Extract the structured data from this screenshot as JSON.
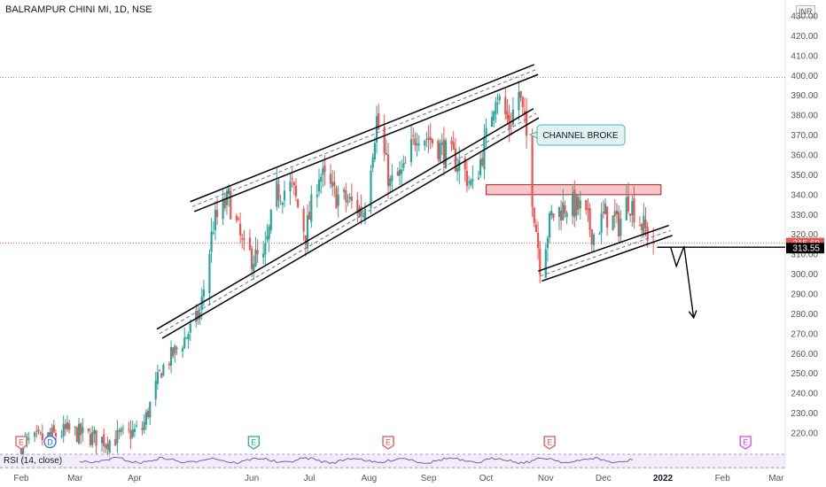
{
  "header": {
    "symbol_title": "BALRAMPUR CHINI MI, 1D, NSE",
    "currency": "INR"
  },
  "rsi": {
    "label": "RSI (14, close)"
  },
  "annotation": {
    "text": "CHANNEL BROKE"
  },
  "price_tags": {
    "last": "315.60",
    "level": "313.55"
  },
  "events": [
    {
      "letter": "E",
      "color": "#e05555",
      "date": "2021-02-01"
    },
    {
      "letter": "D",
      "color": "#2962ff",
      "date": "2021-02-16"
    },
    {
      "letter": "E",
      "color": "#26a69a",
      "date": "2021-06-02"
    },
    {
      "letter": "E",
      "color": "#e05555",
      "date": "2021-08-11"
    },
    {
      "letter": "E",
      "color": "#e05555",
      "date": "2021-11-03"
    },
    {
      "letter": "E",
      "color": "#e040fb",
      "date": "2022-02-13"
    }
  ],
  "colors": {
    "up": "#26a69a",
    "down": "#ef5350",
    "rsi": "#7e57c2",
    "zone_fill": "#f7c6c8",
    "zone_border": "#b71c1c"
  },
  "chart_data": {
    "type": "candlestick",
    "title": "BALRAMPUR CHINI MI, 1D, NSE",
    "x_axis": {
      "tick_labels": [
        "Feb",
        "Mar",
        "Apr",
        "Jun",
        "Jul",
        "Aug",
        "Sep",
        "Oct",
        "Nov",
        "Dec",
        "2022",
        "Feb",
        "Mar"
      ]
    },
    "y_axis": {
      "ylim": [
        212,
        432
      ],
      "tick_labels": [
        "220.00",
        "230.00",
        "240.00",
        "250.00",
        "260.00",
        "270.00",
        "280.00",
        "290.00",
        "300.00",
        "310.00",
        "320.00",
        "330.00",
        "340.00",
        "350.00",
        "360.00",
        "370.00",
        "380.00",
        "390.00",
        "400.00",
        "410.00",
        "420.00",
        "430.00"
      ]
    },
    "last_price": 315.6,
    "support_level": 313.55,
    "resistance_zone": [
      340,
      345
    ],
    "dotted_high_line": 399,
    "series": [
      {
        "name": "close",
        "points": [
          [
            "2021-02-01",
            214
          ],
          [
            "2021-02-25",
            221
          ],
          [
            "2021-03-18",
            216
          ],
          [
            "2021-04-05",
            222
          ],
          [
            "2021-04-15",
            252
          ],
          [
            "2021-04-26",
            266
          ],
          [
            "2021-05-05",
            280
          ],
          [
            "2021-05-12",
            325
          ],
          [
            "2021-05-20",
            338
          ],
          [
            "2021-05-28",
            311
          ],
          [
            "2021-06-07",
            306
          ],
          [
            "2021-06-14",
            341
          ],
          [
            "2021-06-22",
            344
          ],
          [
            "2021-06-29",
            320
          ],
          [
            "2021-07-06",
            351
          ],
          [
            "2021-07-14",
            340
          ],
          [
            "2021-07-22",
            336
          ],
          [
            "2021-07-29",
            331
          ],
          [
            "2021-08-05",
            378
          ],
          [
            "2021-08-12",
            345
          ],
          [
            "2021-08-19",
            351
          ],
          [
            "2021-08-26",
            372
          ],
          [
            "2021-09-02",
            368
          ],
          [
            "2021-09-10",
            361
          ],
          [
            "2021-09-18",
            355
          ],
          [
            "2021-09-24",
            343
          ],
          [
            "2021-10-01",
            368
          ],
          [
            "2021-10-06",
            392
          ],
          [
            "2021-10-13",
            375
          ],
          [
            "2021-10-18",
            392
          ],
          [
            "2021-10-22",
            369
          ],
          [
            "2021-10-25",
            340
          ],
          [
            "2021-10-29",
            306
          ],
          [
            "2021-11-04",
            329
          ],
          [
            "2021-11-12",
            335
          ],
          [
            "2021-11-19",
            333
          ],
          [
            "2021-11-26",
            320
          ],
          [
            "2021-12-02",
            330
          ],
          [
            "2021-12-09",
            325
          ],
          [
            "2021-12-14",
            338
          ],
          [
            "2021-12-21",
            325
          ],
          [
            "2021-12-27",
            315.6
          ]
        ]
      }
    ],
    "trendlines": [
      {
        "name": "channel-upper-band",
        "from": [
          "2021-05-01",
          334
        ],
        "to": [
          "2021-10-27",
          403
        ]
      },
      {
        "name": "channel-lower-band",
        "from": [
          "2021-04-14",
          270
        ],
        "to": [
          "2021-10-27",
          381
        ]
      },
      {
        "name": "flag-lower-band",
        "from": [
          "2021-10-29",
          299
        ],
        "to": [
          "2022-01-05",
          322
        ]
      },
      {
        "name": "projection-path",
        "points": [
          [
            "2021-12-29",
            313.55
          ],
          [
            "2022-01-05",
            313.55
          ],
          [
            "2022-01-08",
            304
          ],
          [
            "2022-01-12",
            314
          ],
          [
            "2022-01-17",
            278
          ]
        ]
      }
    ]
  }
}
